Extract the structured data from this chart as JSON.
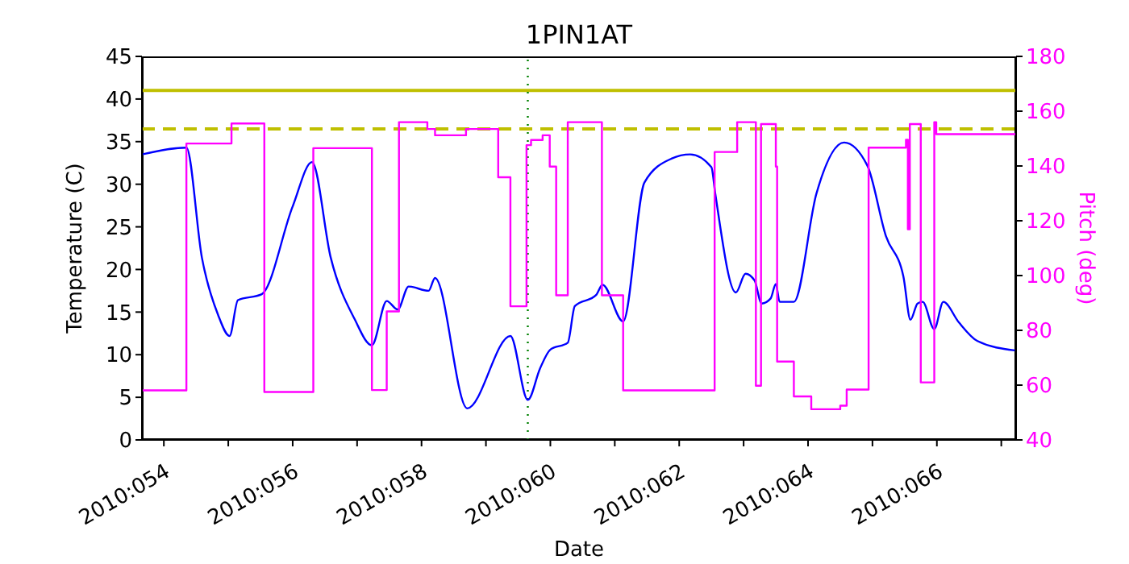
{
  "chart_data": {
    "type": "line",
    "title": "1PIN1AT",
    "xlabel": "Date",
    "ylabel": "Temperature (C)",
    "y2label": "Pitch (deg)",
    "xlim": [
      "2010-02-22T15:50",
      "2010-03-08T05:31"
    ],
    "xticks": [
      {
        "value": "2010-02-23",
        "label": "2010:054"
      },
      {
        "value": "2010-02-24",
        "label": null
      },
      {
        "value": "2010-02-25",
        "label": "2010:056"
      },
      {
        "value": "2010-02-26",
        "label": null
      },
      {
        "value": "2010-02-27",
        "label": "2010:058"
      },
      {
        "value": "2010-02-28",
        "label": null
      },
      {
        "value": "2010-03-01",
        "label": "2010:060"
      },
      {
        "value": "2010-03-02",
        "label": null
      },
      {
        "value": "2010-03-03",
        "label": "2010:062"
      },
      {
        "value": "2010-03-04",
        "label": null
      },
      {
        "value": "2010-03-05",
        "label": "2010:064"
      },
      {
        "value": "2010-03-06",
        "label": null
      },
      {
        "value": "2010-03-07",
        "label": "2010:066"
      },
      {
        "value": "2010-03-08",
        "label": null
      }
    ],
    "ylim": [
      0,
      45
    ],
    "yticks": [
      0,
      5,
      10,
      15,
      20,
      25,
      30,
      35,
      40,
      45
    ],
    "y2lim": [
      40,
      180
    ],
    "y2ticks": [
      40,
      60,
      80,
      100,
      120,
      140,
      160,
      180
    ],
    "series": [
      {
        "color": "#0000ff",
        "x": [
          "2010-02-22T15:50",
          "2010-02-23T08:24",
          "2010-02-23T14:10",
          "2010-02-23T20:10",
          "2010-02-24T00:29",
          "2010-02-24T03:36",
          "2010-02-24T12:29",
          "2010-02-25T00:00",
          "2010-02-25T07:12",
          "2010-02-25T14:10",
          "2010-02-25T23:02",
          "2010-02-26T05:31",
          "2010-02-26T11:02",
          "2010-02-26T15:07",
          "2010-02-26T19:12",
          "2010-02-27T02:38",
          "2010-02-27T05:02",
          "2010-02-27T17:02",
          "2010-02-28T09:07",
          "2010-02-28T15:36",
          "2010-02-28T20:10",
          "2010-03-01T00:00",
          "2010-03-01T06:29",
          "2010-03-01T09:07",
          "2010-03-01T17:02",
          "2010-03-01T19:26",
          "2010-03-02T03:07",
          "2010-03-02T11:02",
          "2010-03-02T21:07",
          "2010-03-03T04:05",
          "2010-03-03T12:00",
          "2010-03-03T13:26",
          "2010-03-03T21:07",
          "2010-03-04T00:43",
          "2010-03-04T04:05",
          "2010-03-04T06:43",
          "2010-03-04T10:05",
          "2010-03-04T12:00",
          "2010-03-04T13:26",
          "2010-03-04T18:43",
          "2010-03-05T03:07",
          "2010-03-05T13:26",
          "2010-03-05T22:05",
          "2010-03-06T05:02",
          "2010-03-06T11:31",
          "2010-03-06T14:10",
          "2010-03-06T16:48",
          "2010-03-06T18:43",
          "2010-03-06T23:02",
          "2010-03-07T02:24",
          "2010-03-07T08:10",
          "2010-03-07T15:07",
          "2010-03-08T05:02"
        ],
        "values": [
          33.5,
          34.3,
          21.4,
          14.7,
          12.2,
          16.4,
          17.1,
          27.4,
          32.6,
          21.4,
          14.2,
          11.1,
          16.3,
          15.3,
          18.0,
          17.5,
          19.0,
          3.7,
          12.2,
          4.7,
          8.4,
          10.6,
          11.4,
          15.7,
          17.0,
          18.2,
          13.9,
          30.2,
          33.0,
          33.5,
          32.0,
          28.9,
          17.3,
          19.5,
          18.7,
          16.0,
          16.6,
          18.3,
          16.2,
          16.2,
          28.9,
          34.9,
          32.2,
          23.9,
          19.2,
          14.1,
          16.0,
          16.2,
          13.0,
          16.2,
          13.8,
          11.6,
          10.5
        ]
      },
      {
        "type": "step",
        "axis": "y2",
        "color": "#ff00ff",
        "x": [
          "2010-02-22T15:50",
          "2010-02-23T08:24",
          "2010-02-24T01:12",
          "2010-02-24T13:26",
          "2010-02-25T07:41",
          "2010-02-26T05:31",
          "2010-02-26T11:02",
          "2010-02-26T15:36",
          "2010-02-27T02:10",
          "2010-02-27T05:02",
          "2010-02-27T16:34",
          "2010-02-28T04:34",
          "2010-02-28T09:07",
          "2010-02-28T15:07",
          "2010-02-28T16:48",
          "2010-02-28T21:07",
          "2010-02-28T23:46",
          "2010-03-01T02:10",
          "2010-03-01T06:29",
          "2010-03-01T19:12",
          "2010-03-02T03:07",
          "2010-03-03T13:12",
          "2010-03-03T21:36",
          "2010-03-04T04:34",
          "2010-03-04T06:29",
          "2010-03-04T12:00",
          "2010-03-04T12:29",
          "2010-03-04T18:43",
          "2010-03-05T01:12",
          "2010-03-05T12:00",
          "2010-03-05T14:24",
          "2010-03-05T22:34",
          "2010-03-06T12:29",
          "2010-03-06T13:12",
          "2010-03-06T13:55",
          "2010-03-06T18:00",
          "2010-03-06T23:02",
          "2010-03-06T23:46",
          "2010-03-08T05:31"
        ],
        "values": [
          58.1,
          148.2,
          155.5,
          57.5,
          146.5,
          58.2,
          86.9,
          156,
          153.5,
          151.2,
          153.5,
          135.9,
          88.8,
          147.6,
          149.5,
          151.2,
          139.8,
          92.8,
          156,
          92.8,
          58.1,
          145.1,
          156,
          59.8,
          155.3,
          139.8,
          68.6,
          55.9,
          51.2,
          52.5,
          58.4,
          146.7,
          149.6,
          116.9,
          155.3,
          61,
          156,
          151.6,
          151.6
        ]
      }
    ],
    "ref_lines": [
      {
        "axis": "y",
        "value": 41,
        "color": "#bfbf00",
        "line_style": "solid"
      },
      {
        "axis": "y",
        "value": 36.5,
        "color": "#bfbf00",
        "line_style": "dashed"
      },
      {
        "axis": "x",
        "value": "2010-02-28T15:36",
        "color": "#008000",
        "line_style": "dotted"
      }
    ]
  }
}
